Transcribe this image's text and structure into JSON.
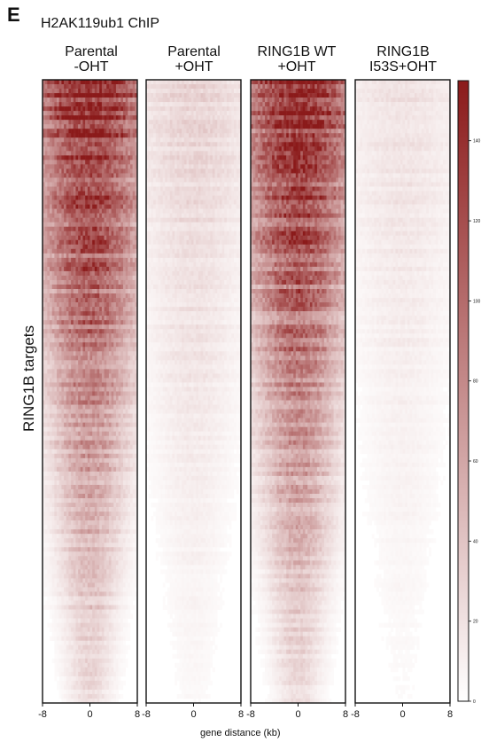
{
  "figure": {
    "panel_letter": "E",
    "title": "H2AK119ub1 ChIP",
    "y_label": "RING1B targets",
    "x_label": "gene distance (kb)"
  },
  "panels": [
    {
      "title_line1": "Parental",
      "title_line2": "-OHT",
      "signal_level": 1.0
    },
    {
      "title_line1": "Parental",
      "title_line2": "+OHT",
      "signal_level": 0.22
    },
    {
      "title_line1": "RING1B WT",
      "title_line2": "+OHT",
      "signal_level": 1.0
    },
    {
      "title_line1": "RING1B",
      "title_line2": "I53S+OHT",
      "signal_level": 0.15
    }
  ],
  "chart_data": {
    "type": "heatmap",
    "x_ticks": [
      "-8",
      "0",
      "8"
    ],
    "x_range_kb": [
      -8,
      8
    ],
    "colorbar": {
      "colors": [
        "#ffffff",
        "#8b1a1a"
      ],
      "ticks": [
        "0",
        "20",
        "40",
        "60",
        "80",
        "100",
        "120",
        "140"
      ],
      "range": [
        0,
        155
      ]
    }
  }
}
